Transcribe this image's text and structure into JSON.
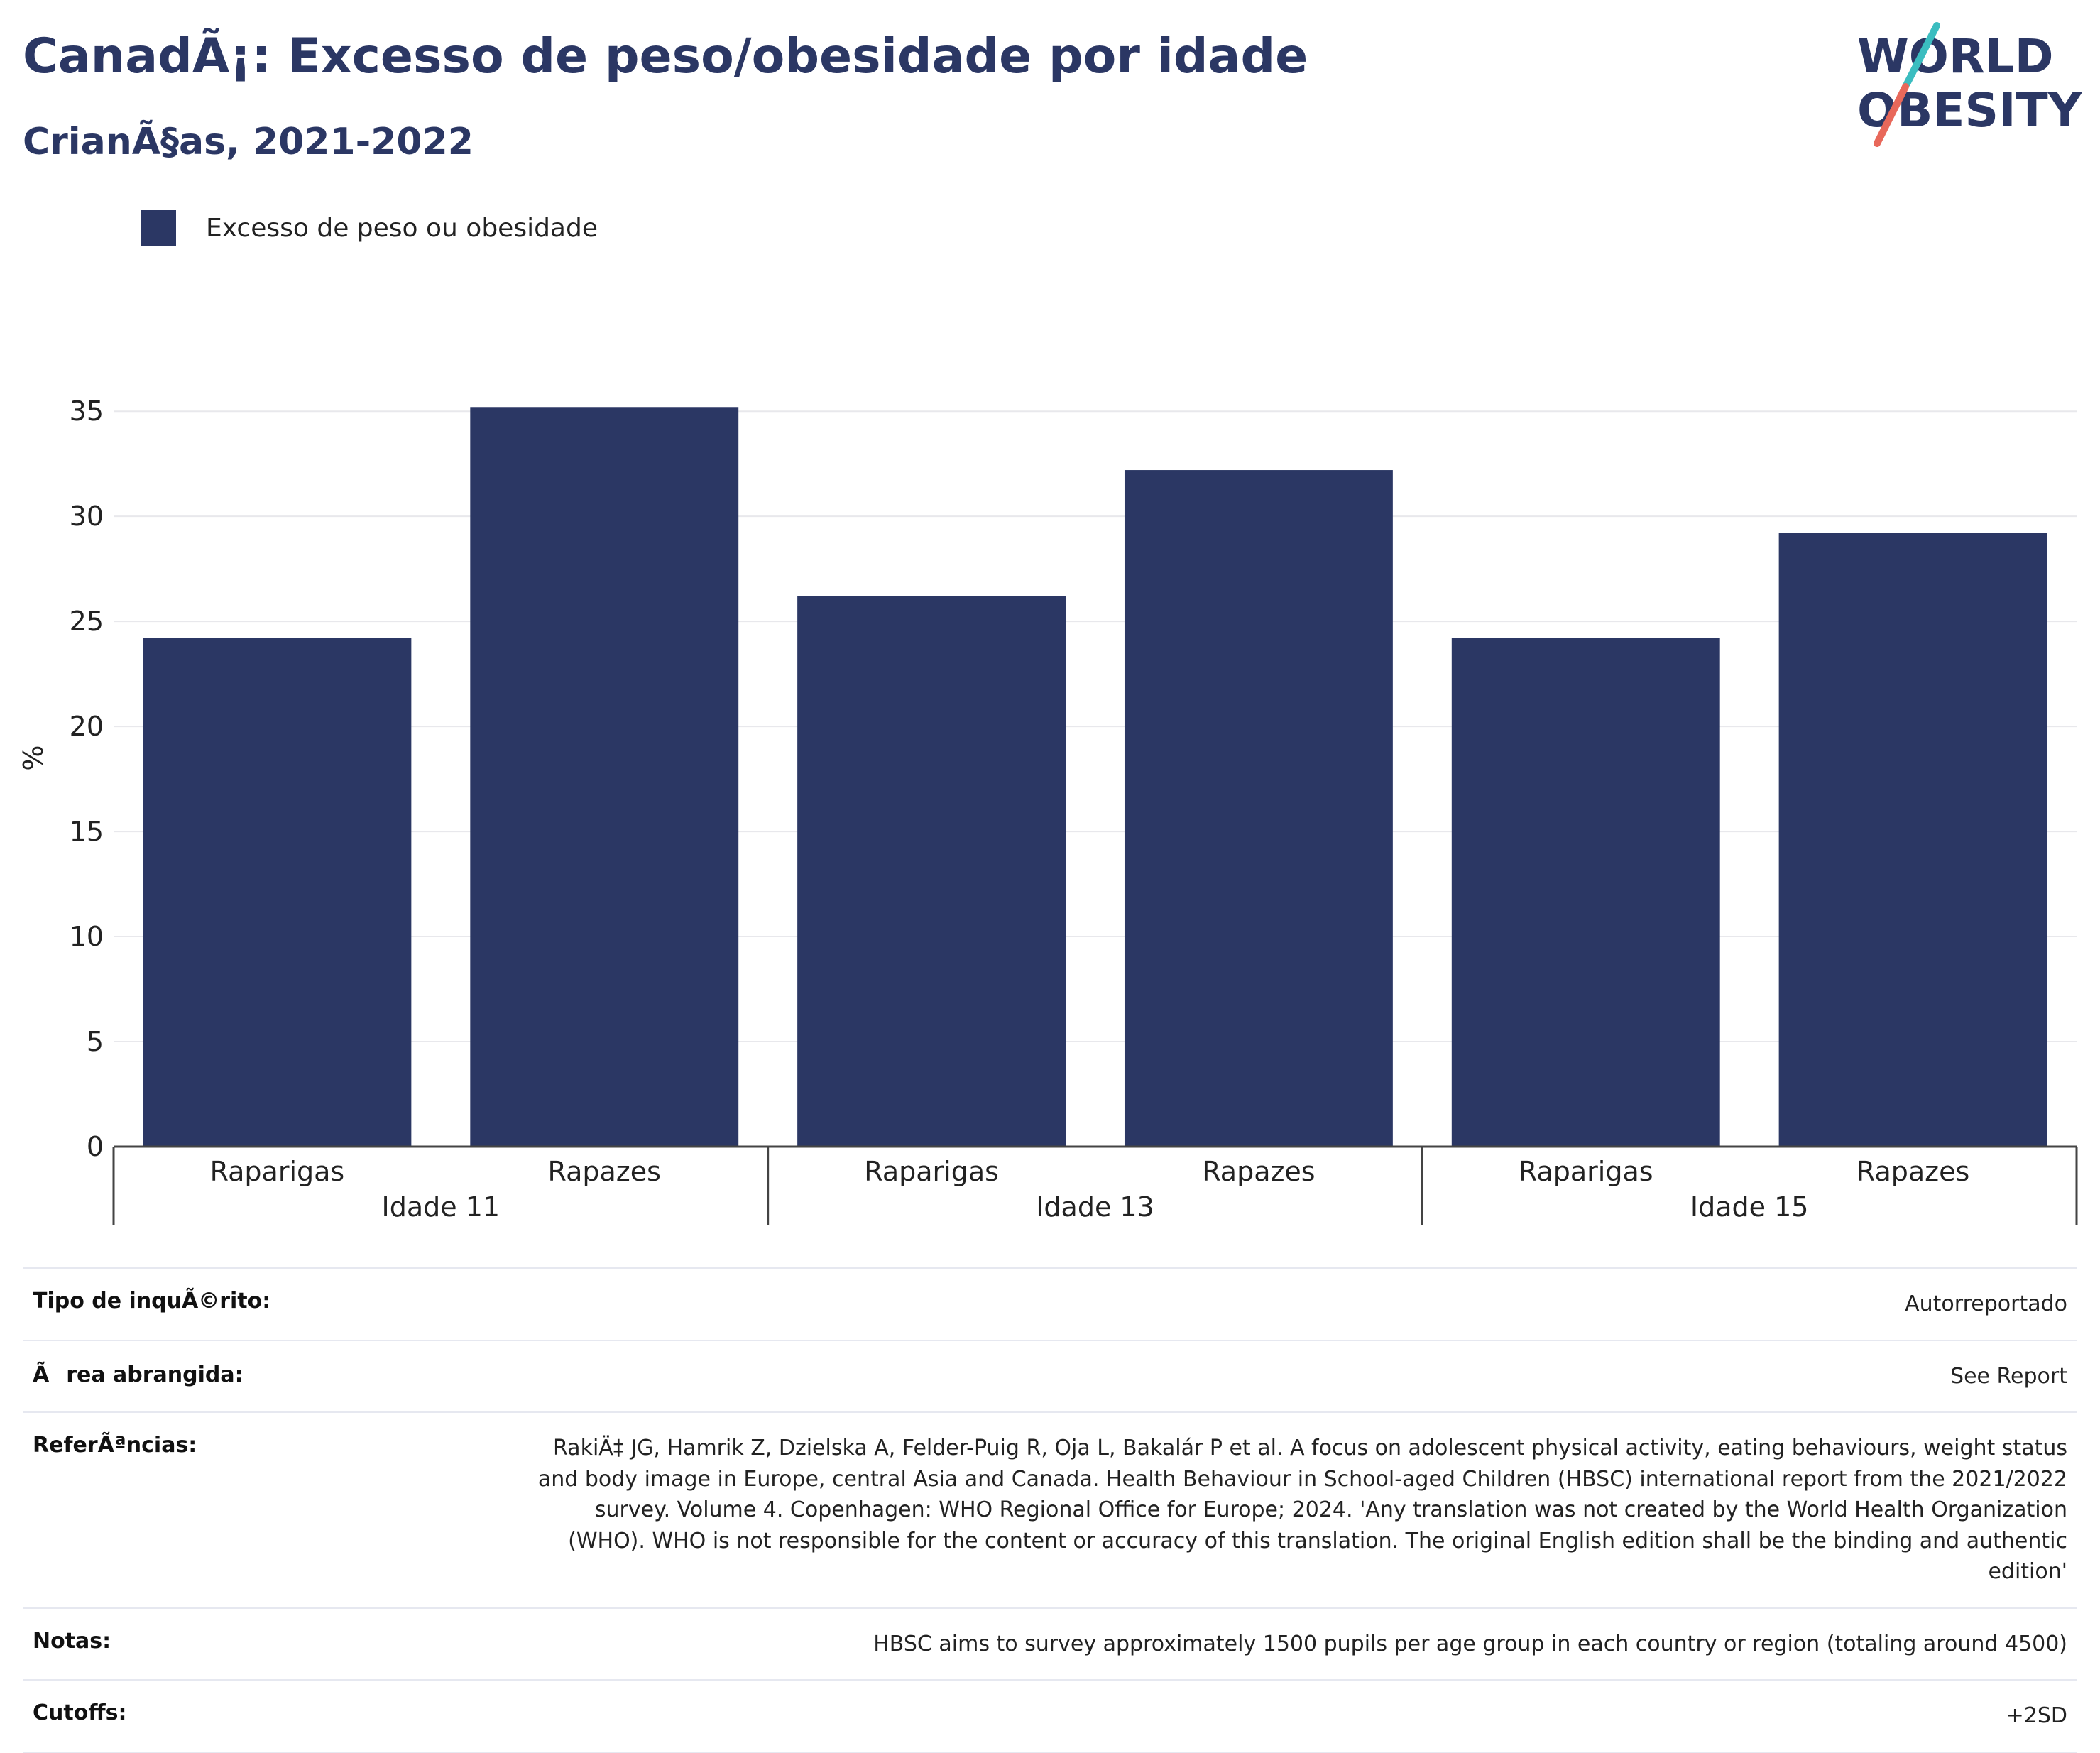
{
  "header": {
    "title": "CanadÃ¡: Excesso de peso/obesidade por idade",
    "subtitle": "CrianÃ§as, 2021-2022"
  },
  "logo": {
    "line1": "WORLD",
    "line2": "OBESITY",
    "colors": {
      "text": "#2b3764",
      "slash_teal": "#3bbdc0",
      "slash_red": "#e8685a"
    }
  },
  "colors": {
    "bar": "#2b3764",
    "grid": "#e8e8ec",
    "axis": "#444444"
  },
  "chart_data": {
    "type": "bar",
    "ylabel": "%",
    "ylim": [
      0,
      37
    ],
    "yticks": [
      0,
      5,
      10,
      15,
      20,
      25,
      30,
      35
    ],
    "grid": true,
    "legend_position": "top-left",
    "groups": [
      "Idade 11",
      "Idade 13",
      "Idade 15"
    ],
    "subcategories": [
      "Raparigas",
      "Rapazes"
    ],
    "series": [
      {
        "name": "Excesso de peso ou obesidade",
        "values": [
          24.2,
          35.2,
          26.2,
          32.2,
          24.2,
          29.2
        ]
      }
    ]
  },
  "meta": [
    {
      "label": "Tipo de inquÃ©rito:",
      "value": "Autorreportado"
    },
    {
      "label": "Ãrea abrangida:",
      "value": "See Report"
    },
    {
      "label": "ReferÃªncias:",
      "value": "RakiÄ‡ JG, Hamrik Z, Dzielska A, Felder-Puig R, Oja L, Bakalár P et al. A focus on adolescent physical activity, eating behaviours, weight status and body image in Europe, central Asia and Canada. Health Behaviour in School-aged Children (HBSC) international report from the 2021/2022 survey. Volume 4. Copenhagen: WHO Regional Office for Europe; 2024. 'Any translation was not created by the World Health Organization (WHO). WHO is not responsible for the content or accuracy of this translation. The original English edition shall be the binding and authentic edition'"
    },
    {
      "label": "Notas:",
      "value": "HBSC aims to survey approximately 1500 pupils per age group in each country or region (totaling around 4500)"
    },
    {
      "label": "Cutoffs:",
      "value": "+2SD"
    }
  ]
}
